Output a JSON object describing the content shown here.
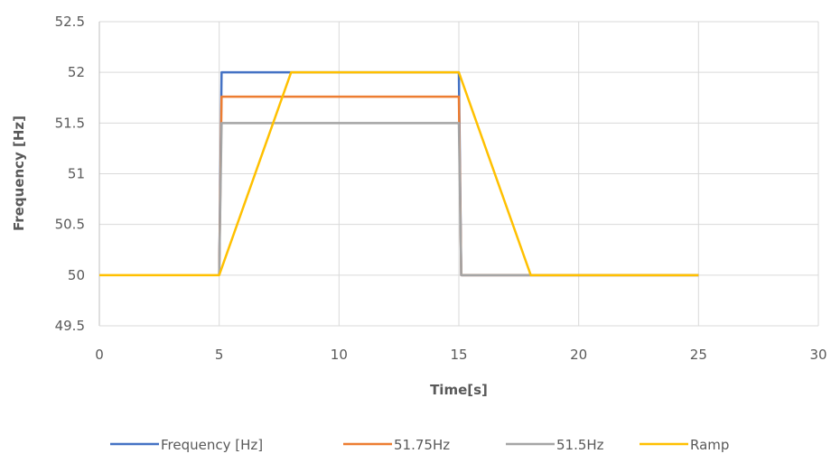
{
  "chart_data": {
    "type": "line",
    "xlabel": "Time[s]",
    "ylabel": "Frequency [Hz]",
    "xlim": [
      0,
      30
    ],
    "ylim": [
      49.5,
      52.5
    ],
    "x_ticks": [
      "0",
      "5",
      "10",
      "15",
      "20",
      "25",
      "30"
    ],
    "y_ticks": [
      "49.5",
      "50",
      "50.5",
      "51",
      "51.5",
      "52",
      "52.5"
    ],
    "grid": true,
    "legend_position": "bottom",
    "series": [
      {
        "name": "Frequency [Hz]",
        "color": "#4472C4",
        "points": [
          [
            5,
            50
          ],
          [
            5.1,
            52
          ],
          [
            8,
            52
          ],
          [
            15,
            52
          ],
          [
            15.1,
            50
          ],
          [
            25,
            50
          ]
        ]
      },
      {
        "name": "51.75Hz",
        "color": "#ED7D31",
        "points": [
          [
            5,
            50
          ],
          [
            5.1,
            51.76
          ],
          [
            15,
            51.76
          ],
          [
            15.1,
            50
          ],
          [
            25,
            50
          ]
        ]
      },
      {
        "name": "51.5Hz",
        "color": "#A5A5A5",
        "points": [
          [
            5,
            50
          ],
          [
            5.1,
            51.5
          ],
          [
            15,
            51.5
          ],
          [
            15.1,
            50
          ],
          [
            25,
            50
          ]
        ]
      },
      {
        "name": "Ramp",
        "color": "#FFC000",
        "points": [
          [
            0,
            50
          ],
          [
            5,
            50
          ],
          [
            8,
            52
          ],
          [
            15,
            52
          ],
          [
            18,
            50
          ],
          [
            25,
            50
          ]
        ]
      }
    ]
  }
}
